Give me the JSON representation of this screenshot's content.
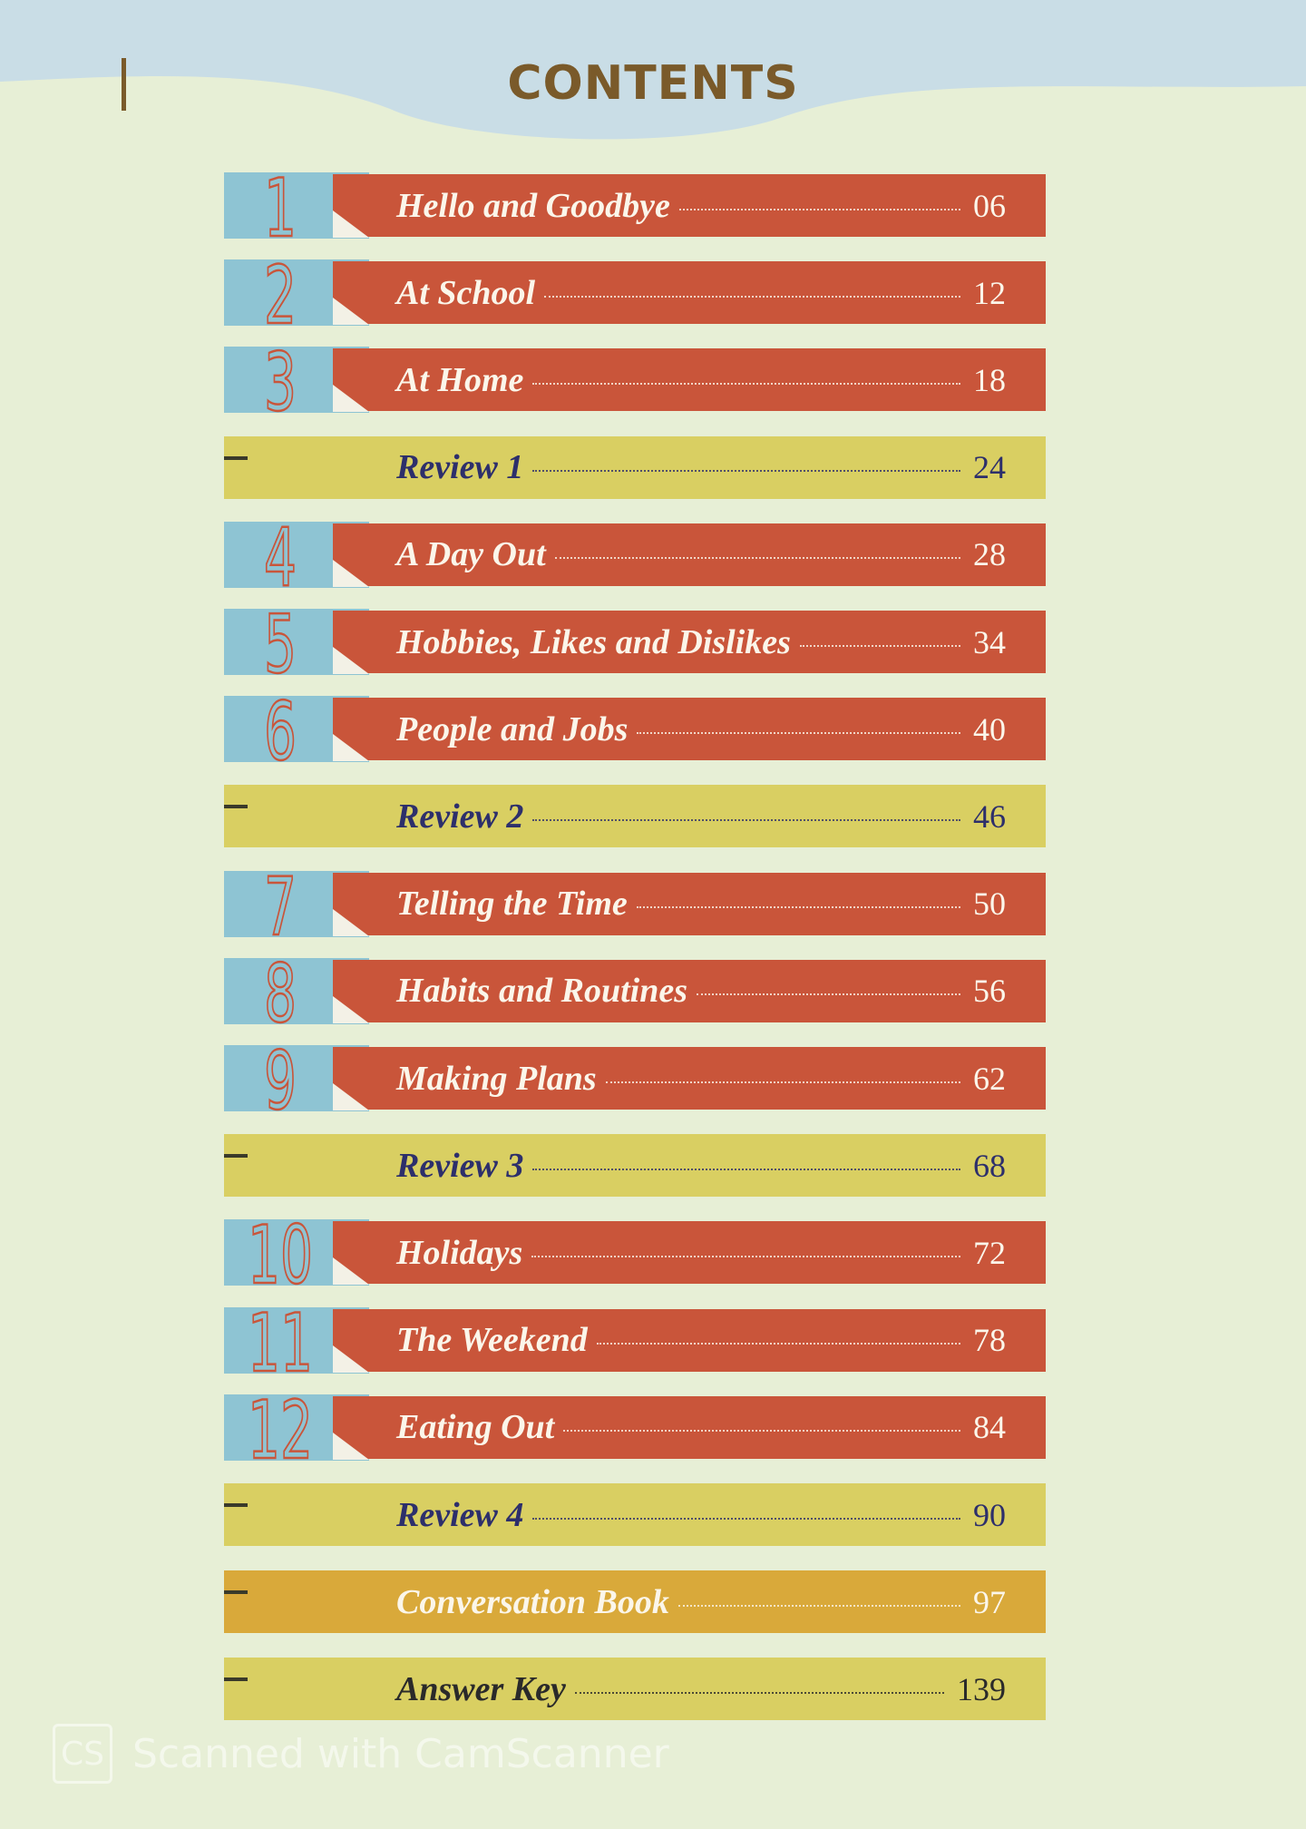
{
  "header": {
    "title": "CONTENTS"
  },
  "entries": [
    {
      "unit": "1",
      "title": "Hello and Goodbye",
      "page": "06",
      "color": "#c9553a",
      "text_color": "#fbf6ea"
    },
    {
      "unit": "2",
      "title": "At School",
      "page": "12",
      "color": "#c9553a",
      "text_color": "#fbf6ea"
    },
    {
      "unit": "3",
      "title": "At Home",
      "page": "18",
      "color": "#c9553a",
      "text_color": "#fbf6ea"
    },
    {
      "title": "Review 1",
      "page": "24",
      "color": "#d9cf62",
      "text_color": "#2d2f6b"
    },
    {
      "unit": "4",
      "title": "A Day Out",
      "page": "28",
      "color": "#c9553a",
      "text_color": "#fbf6ea"
    },
    {
      "unit": "5",
      "title": "Hobbies, Likes and Dislikes",
      "page": "34",
      "color": "#c9553a",
      "text_color": "#fbf6ea"
    },
    {
      "unit": "6",
      "title": "People and Jobs",
      "page": "40",
      "color": "#c9553a",
      "text_color": "#fbf6ea"
    },
    {
      "title": "Review 2",
      "page": "46",
      "color": "#d9cf62",
      "text_color": "#2d2f6b"
    },
    {
      "unit": "7",
      "title": "Telling the Time",
      "page": "50",
      "color": "#c9553a",
      "text_color": "#fbf6ea"
    },
    {
      "unit": "8",
      "title": "Habits and Routines",
      "page": "56",
      "color": "#c9553a",
      "text_color": "#fbf6ea"
    },
    {
      "unit": "9",
      "title": "Making Plans",
      "page": "62",
      "color": "#c9553a",
      "text_color": "#fbf6ea"
    },
    {
      "title": "Review 3",
      "page": "68",
      "color": "#d9cf62",
      "text_color": "#2d2f6b"
    },
    {
      "unit": "10",
      "title": "Holidays",
      "page": "72",
      "color": "#c9553a",
      "text_color": "#fbf6ea"
    },
    {
      "unit": "11",
      "title": "The Weekend",
      "page": "78",
      "color": "#c9553a",
      "text_color": "#fbf6ea"
    },
    {
      "unit": "12",
      "title": "Eating Out",
      "page": "84",
      "color": "#c9553a",
      "text_color": "#fbf6ea"
    },
    {
      "title": "Review 4",
      "page": "90",
      "color": "#d9cf62",
      "text_color": "#2d2f6b"
    },
    {
      "title": "Conversation Book",
      "page": "97",
      "color": "#d9a93a",
      "text_color": "#fbf6ea"
    },
    {
      "title": "Answer Key",
      "page": "139",
      "color": "#d9cf62",
      "text_color": "#2a2a2a"
    }
  ],
  "watermark": {
    "logo": "CS",
    "text": "Scanned with CamScanner"
  }
}
